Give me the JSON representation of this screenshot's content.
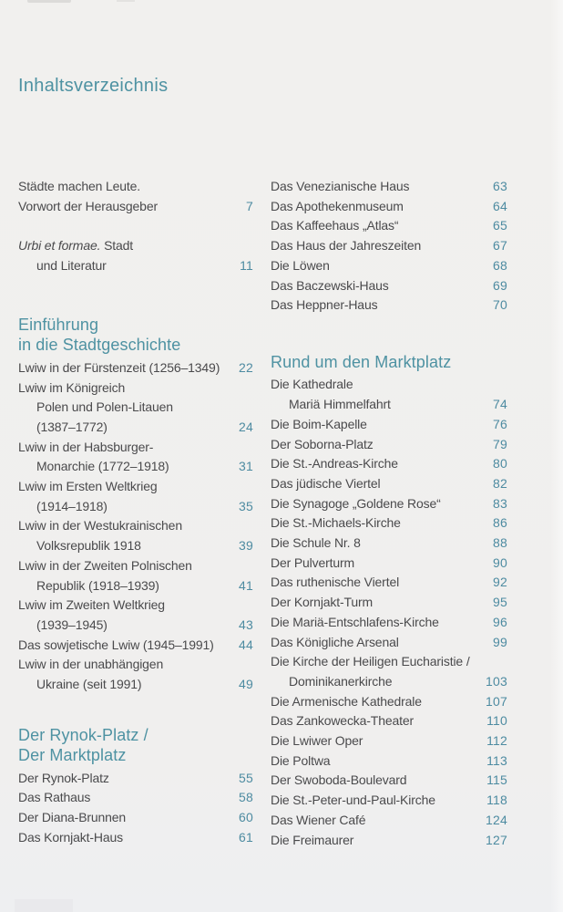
{
  "page": {
    "title": "Inhaltsverzeichnis"
  },
  "colors": {
    "accent": "#4e92a2",
    "page_number": "#4d8ba1",
    "body_text": "#4a4a4c",
    "background": "#f0efee"
  },
  "columns": [
    {
      "id": "left",
      "sections": [
        {
          "heading": [],
          "entries": [
            {
              "lines": [
                {
                  "text": "Städte machen Leute."
                },
                {
                  "text": "Vorwort der Herausgeber"
                }
              ],
              "page": "7"
            }
          ]
        },
        {
          "heading": [],
          "entries": [
            {
              "lines": [
                {
                  "italic": "Urbi et formae.",
                  "text": " Stadt"
                },
                {
                  "text": "und Literatur",
                  "indent": true
                }
              ],
              "page": "11"
            }
          ]
        },
        {
          "heading": [
            "Einführung",
            "in die Stadtgeschichte"
          ],
          "entries": [
            {
              "lines": [
                {
                  "text": "Lwiw in der Fürstenzeit (1256–1349)"
                }
              ],
              "page": "22"
            },
            {
              "lines": [
                {
                  "text": "Lwiw im Königreich"
                },
                {
                  "text": "Polen und Polen-Litauen",
                  "indent": true
                },
                {
                  "text": "(1387–1772)",
                  "indent": true
                }
              ],
              "page": "24"
            },
            {
              "lines": [
                {
                  "text": "Lwiw in der Habsburger-"
                },
                {
                  "text": "Monarchie (1772–1918)",
                  "indent": true
                }
              ],
              "page": "31"
            },
            {
              "lines": [
                {
                  "text": "Lwiw im Ersten Weltkrieg"
                },
                {
                  "text": "(1914–1918)",
                  "indent": true
                }
              ],
              "page": "35"
            },
            {
              "lines": [
                {
                  "text": "Lwiw in der Westukrainischen"
                },
                {
                  "text": "Volksrepublik 1918",
                  "indent": true
                }
              ],
              "page": "39"
            },
            {
              "lines": [
                {
                  "text": "Lwiw in der Zweiten Polnischen"
                },
                {
                  "text": "Republik (1918–1939)",
                  "indent": true
                }
              ],
              "page": "41"
            },
            {
              "lines": [
                {
                  "text": "Lwiw im Zweiten Weltkrieg"
                },
                {
                  "text": "(1939–1945)",
                  "indent": true
                }
              ],
              "page": "43"
            },
            {
              "lines": [
                {
                  "text": "Das sowjetische Lwiw (1945–1991)"
                }
              ],
              "page": "44"
            },
            {
              "lines": [
                {
                  "text": "Lwiw in der unabhängigen"
                },
                {
                  "text": "Ukraine (seit 1991)",
                  "indent": true
                }
              ],
              "page": "49"
            }
          ]
        },
        {
          "heading": [
            "Der Rynok-Platz /",
            "Der Marktplatz"
          ],
          "entries": [
            {
              "lines": [
                {
                  "text": "Der Rynok-Platz"
                }
              ],
              "page": "55"
            },
            {
              "lines": [
                {
                  "text": "Das Rathaus"
                }
              ],
              "page": "58"
            },
            {
              "lines": [
                {
                  "text": "Der Diana-Brunnen"
                }
              ],
              "page": "60"
            },
            {
              "lines": [
                {
                  "text": "Das Kornjakt-Haus"
                }
              ],
              "page": "61"
            }
          ]
        }
      ]
    },
    {
      "id": "right",
      "sections": [
        {
          "heading": [],
          "entries": [
            {
              "lines": [
                {
                  "text": "Das Venezianische Haus"
                }
              ],
              "page": "63"
            },
            {
              "lines": [
                {
                  "text": "Das Apothekenmuseum"
                }
              ],
              "page": "64"
            },
            {
              "lines": [
                {
                  "text": "Das Kaffeehaus „Atlas“"
                }
              ],
              "page": "65"
            },
            {
              "lines": [
                {
                  "text": "Das Haus der Jahreszeiten"
                }
              ],
              "page": "67"
            },
            {
              "lines": [
                {
                  "text": "Die Löwen"
                }
              ],
              "page": "68"
            },
            {
              "lines": [
                {
                  "text": "Das Baczewski-Haus"
                }
              ],
              "page": "69"
            },
            {
              "lines": [
                {
                  "text": "Das Heppner-Haus"
                }
              ],
              "page": "70"
            }
          ]
        },
        {
          "heading": [
            "Rund um den Marktplatz"
          ],
          "entries": [
            {
              "lines": [
                {
                  "text": "Die Kathedrale"
                },
                {
                  "text": "Mariä Himmelfahrt",
                  "indent": true
                }
              ],
              "page": "74"
            },
            {
              "lines": [
                {
                  "text": "Die Boim-Kapelle"
                }
              ],
              "page": "76"
            },
            {
              "lines": [
                {
                  "text": "Der Soborna-Platz"
                }
              ],
              "page": "79"
            },
            {
              "lines": [
                {
                  "text": "Die St.-Andreas-Kirche"
                }
              ],
              "page": "80"
            },
            {
              "lines": [
                {
                  "text": "Das jüdische Viertel"
                }
              ],
              "page": "82"
            },
            {
              "lines": [
                {
                  "text": "Die Synagoge „Goldene Rose“"
                }
              ],
              "page": "83"
            },
            {
              "lines": [
                {
                  "text": "Die St.-Michaels-Kirche"
                }
              ],
              "page": "86"
            },
            {
              "lines": [
                {
                  "text": "Die Schule Nr. 8"
                }
              ],
              "page": "88"
            },
            {
              "lines": [
                {
                  "text": "Der Pulverturm"
                }
              ],
              "page": "90"
            },
            {
              "lines": [
                {
                  "text": "Das ruthenische Viertel"
                }
              ],
              "page": "92"
            },
            {
              "lines": [
                {
                  "text": "Der Kornjakt-Turm"
                }
              ],
              "page": "95"
            },
            {
              "lines": [
                {
                  "text": "Die Mariä-Entschlafens-Kirche"
                }
              ],
              "page": "96"
            },
            {
              "lines": [
                {
                  "text": "Das Königliche Arsenal"
                }
              ],
              "page": "99"
            },
            {
              "lines": [
                {
                  "text": "Die Kirche der Heiligen Eucharistie /"
                },
                {
                  "text": "Dominikanerkirche",
                  "indent": true
                }
              ],
              "page": "103"
            },
            {
              "lines": [
                {
                  "text": "Die Armenische Kathedrale"
                }
              ],
              "page": "107"
            },
            {
              "lines": [
                {
                  "text": "Das Zankowecka-Theater"
                }
              ],
              "page": "110"
            },
            {
              "lines": [
                {
                  "text": "Die Lwiwer Oper"
                }
              ],
              "page": "112"
            },
            {
              "lines": [
                {
                  "text": "Die Poltwa"
                }
              ],
              "page": "113"
            },
            {
              "lines": [
                {
                  "text": "Der Swoboda-Boulevard"
                }
              ],
              "page": "115"
            },
            {
              "lines": [
                {
                  "text": "Die St.-Peter-und-Paul-Kirche"
                }
              ],
              "page": "118"
            },
            {
              "lines": [
                {
                  "text": "Das Wiener Café"
                }
              ],
              "page": "124"
            },
            {
              "lines": [
                {
                  "text": "Die Freimaurer"
                }
              ],
              "page": "127"
            }
          ]
        }
      ]
    }
  ]
}
